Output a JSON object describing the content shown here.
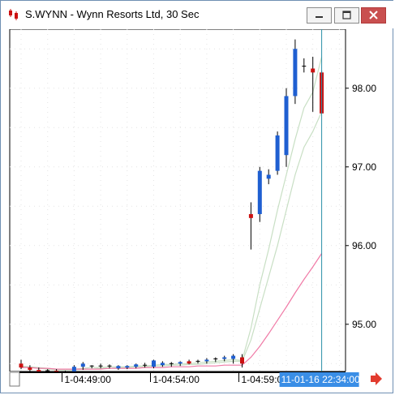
{
  "window": {
    "title": "S.WYNN - Wynn Resorts Ltd, 30 Sec"
  },
  "icons": {
    "app": "candlestick-app-icon",
    "minimize": "minimize-icon",
    "maximize": "maximize-icon",
    "close": "close-icon",
    "scroll": "red-right-arrow-icon"
  },
  "colors": {
    "up": "#1f5fd1",
    "down": "#cc1111",
    "ma_fast": "#c8dfc4",
    "ma_mid": "#c8dfc4",
    "ma_slow": "#f07aa6",
    "cursor": "#2a8fa8",
    "highlight": "#3a8ee6"
  },
  "chart_data": {
    "type": "candlestick",
    "ylim": [
      94.4,
      98.75
    ],
    "y_ticks": [
      "98.00",
      "97.00",
      "96.00",
      "95.00"
    ],
    "y_tick_values": [
      98.0,
      97.0,
      96.0,
      95.0
    ],
    "x_ticks": [
      "1-04:49:00",
      "1-04:54:00",
      "1-04:59:00"
    ],
    "x_tick_index": [
      5,
      15,
      25
    ],
    "cursor_label": "11-01-16 22:34:00",
    "cursor_index": 34,
    "candles": [
      {
        "o": 94.5,
        "h": 94.55,
        "l": 94.43,
        "c": 94.45
      },
      {
        "o": 94.45,
        "h": 94.48,
        "l": 94.4,
        "c": 94.42
      },
      {
        "o": 94.42,
        "h": 94.45,
        "l": 94.38,
        "c": 94.4
      },
      {
        "o": 94.4,
        "h": 94.43,
        "l": 94.37,
        "c": 94.41
      },
      {
        "o": 94.41,
        "h": 94.43,
        "l": 94.38,
        "c": 94.39
      },
      {
        "o": 94.39,
        "h": 94.41,
        "l": 94.37,
        "c": 94.4
      },
      {
        "o": 94.4,
        "h": 94.48,
        "l": 94.38,
        "c": 94.46
      },
      {
        "o": 94.46,
        "h": 94.52,
        "l": 94.42,
        "c": 94.5
      },
      {
        "o": 94.46,
        "h": 94.48,
        "l": 94.44,
        "c": 94.47
      },
      {
        "o": 94.47,
        "h": 94.5,
        "l": 94.44,
        "c": 94.46
      },
      {
        "o": 94.46,
        "h": 94.49,
        "l": 94.44,
        "c": 94.47
      },
      {
        "o": 94.44,
        "h": 94.48,
        "l": 94.42,
        "c": 94.47
      },
      {
        "o": 94.45,
        "h": 94.48,
        "l": 94.43,
        "c": 94.47
      },
      {
        "o": 94.46,
        "h": 94.5,
        "l": 94.44,
        "c": 94.49
      },
      {
        "o": 94.47,
        "h": 94.51,
        "l": 94.45,
        "c": 94.48
      },
      {
        "o": 94.46,
        "h": 94.55,
        "l": 94.44,
        "c": 94.54
      },
      {
        "o": 94.48,
        "h": 94.53,
        "l": 94.46,
        "c": 94.51
      },
      {
        "o": 94.49,
        "h": 94.52,
        "l": 94.46,
        "c": 94.5
      },
      {
        "o": 94.5,
        "h": 94.53,
        "l": 94.47,
        "c": 94.52
      },
      {
        "o": 94.53,
        "h": 94.55,
        "l": 94.49,
        "c": 94.5
      },
      {
        "o": 94.52,
        "h": 94.55,
        "l": 94.5,
        "c": 94.53
      },
      {
        "o": 94.53,
        "h": 94.57,
        "l": 94.5,
        "c": 94.55
      },
      {
        "o": 94.55,
        "h": 94.58,
        "l": 94.52,
        "c": 94.56
      },
      {
        "o": 94.56,
        "h": 94.6,
        "l": 94.53,
        "c": 94.58
      },
      {
        "o": 94.56,
        "h": 94.62,
        "l": 94.5,
        "c": 94.6
      },
      {
        "o": 94.58,
        "h": 94.62,
        "l": 94.45,
        "c": 94.5
      },
      {
        "o": 96.4,
        "h": 96.55,
        "l": 95.95,
        "c": 96.35
      },
      {
        "o": 96.4,
        "h": 97.0,
        "l": 96.3,
        "c": 96.95
      },
      {
        "o": 96.85,
        "h": 96.97,
        "l": 96.78,
        "c": 96.9
      },
      {
        "o": 96.95,
        "h": 97.45,
        "l": 96.9,
        "c": 97.4
      },
      {
        "o": 97.15,
        "h": 98.0,
        "l": 97.0,
        "c": 97.9
      },
      {
        "o": 97.9,
        "h": 98.62,
        "l": 97.8,
        "c": 98.5
      },
      {
        "o": 98.28,
        "h": 98.38,
        "l": 98.2,
        "c": 98.28
      },
      {
        "o": 98.25,
        "h": 98.4,
        "l": 97.7,
        "c": 98.2
      },
      {
        "o": 98.2,
        "h": 98.22,
        "l": 97.68,
        "c": 97.68
      }
    ],
    "moving_averages": [
      {
        "color_key": "ma_fast",
        "values": [
          94.47,
          94.46,
          94.45,
          94.44,
          94.43,
          94.42,
          94.43,
          94.44,
          94.45,
          94.45,
          94.46,
          94.46,
          94.46,
          94.47,
          94.47,
          94.48,
          94.49,
          94.49,
          94.5,
          94.5,
          94.51,
          94.52,
          94.53,
          94.54,
          94.55,
          94.54,
          94.95,
          95.5,
          95.95,
          96.45,
          96.9,
          97.35,
          97.75,
          97.95,
          98.4
        ]
      },
      {
        "color_key": "ma_mid",
        "values": [
          94.46,
          94.45,
          94.44,
          94.43,
          94.42,
          94.42,
          94.42,
          94.43,
          94.43,
          94.44,
          94.44,
          94.45,
          94.45,
          94.46,
          94.46,
          94.47,
          94.47,
          94.48,
          94.48,
          94.49,
          94.49,
          94.5,
          94.51,
          94.52,
          94.53,
          94.53,
          94.8,
          95.2,
          95.6,
          96.0,
          96.45,
          96.9,
          97.25,
          97.45,
          97.7
        ]
      },
      {
        "color_key": "ma_slow",
        "values": [
          94.45,
          94.45,
          94.44,
          94.44,
          94.43,
          94.43,
          94.43,
          94.43,
          94.43,
          94.43,
          94.44,
          94.44,
          94.44,
          94.44,
          94.45,
          94.45,
          94.45,
          94.46,
          94.46,
          94.46,
          94.47,
          94.47,
          94.47,
          94.48,
          94.48,
          94.48,
          94.58,
          94.72,
          94.88,
          95.05,
          95.22,
          95.4,
          95.57,
          95.73,
          95.9
        ]
      }
    ]
  }
}
